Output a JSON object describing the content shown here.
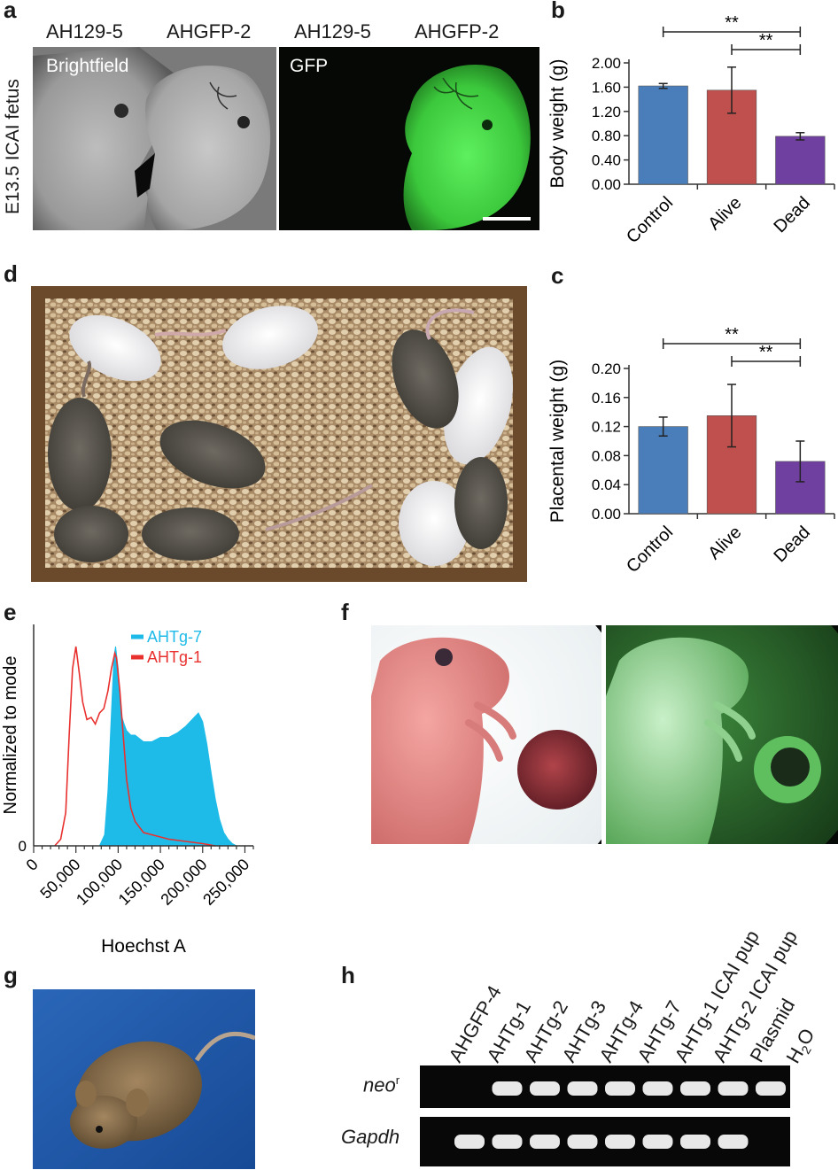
{
  "panels": {
    "a": {
      "label": "a",
      "side_label": "E13.5 ICAI fetus",
      "column_labels": [
        "AH129-5",
        "AHGFP-2",
        "AH129-5",
        "AHGFP-2"
      ],
      "image_labels": [
        "Brightfield",
        "GFP"
      ]
    },
    "b": {
      "label": "b"
    },
    "c": {
      "label": "c"
    },
    "d": {
      "label": "d"
    },
    "e": {
      "label": "e"
    },
    "f": {
      "label": "f"
    },
    "g": {
      "label": "g"
    },
    "h": {
      "label": "h",
      "lanes": [
        "AHGFP-4",
        "AHTg-1",
        "AHTg-2",
        "AHTg-3",
        "AHTg-4",
        "AHTg-7",
        "AHTg-1 ICAI pup",
        "AHTg-2 ICAI pup",
        "Plasmid",
        "H2O"
      ],
      "rows": [
        {
          "name": "neo",
          "superscript": "r",
          "bands": [
            false,
            true,
            true,
            true,
            true,
            true,
            true,
            true,
            true,
            false
          ]
        },
        {
          "name": "Gapdh",
          "superscript": "",
          "bands": [
            true,
            true,
            true,
            true,
            true,
            true,
            true,
            true,
            false,
            false
          ]
        }
      ]
    }
  },
  "colors": {
    "control": "#4a7ebb",
    "alive": "#c0504d",
    "dead": "#7040a0",
    "ahtg7": "#1ebbe8",
    "ahtg1": "#e8312f",
    "gfp": "#3fd13f"
  },
  "chart_data": [
    {
      "panel": "b",
      "type": "bar",
      "categories": [
        "Control",
        "Alive",
        "Dead"
      ],
      "values": [
        1.62,
        1.55,
        0.79
      ],
      "errors": [
        0.04,
        0.38,
        0.06
      ],
      "ylabel": "Body weight (g)",
      "ylim": [
        0,
        2.0
      ],
      "yticks": [
        "0.00",
        "0.40",
        "0.80",
        "1.20",
        "1.60",
        "2.00"
      ],
      "significance": [
        {
          "from": "Control",
          "to": "Dead",
          "label": "**"
        },
        {
          "from": "Alive",
          "to": "Dead",
          "label": "**"
        }
      ]
    },
    {
      "panel": "c",
      "type": "bar",
      "categories": [
        "Control",
        "Alive",
        "Dead"
      ],
      "values": [
        0.12,
        0.135,
        0.072
      ],
      "errors": [
        0.013,
        0.043,
        0.028
      ],
      "ylabel": "Placental weight (g)",
      "ylim": [
        0,
        0.2
      ],
      "yticks": [
        "0.00",
        "0.04",
        "0.08",
        "0.12",
        "0.16",
        "0.20"
      ],
      "significance": [
        {
          "from": "Control",
          "to": "Dead",
          "label": "**"
        },
        {
          "from": "Alive",
          "to": "Dead",
          "label": "**"
        }
      ]
    },
    {
      "panel": "e",
      "type": "area",
      "xlabel": "Hoechst A",
      "ylabel": "Normalized to mode",
      "xlim": [
        0,
        260000
      ],
      "ylim": [
        0,
        1.0
      ],
      "xticks": [
        "0",
        "50,000",
        "100,000",
        "150,000",
        "200,000",
        "250,000"
      ],
      "yticks": [
        "0"
      ],
      "series": [
        {
          "name": "AHTg-7",
          "x": [
            78000,
            84000,
            88000,
            92000,
            95000,
            97000,
            100000,
            103000,
            107000,
            110000,
            115000,
            120000,
            130000,
            140000,
            150000,
            160000,
            170000,
            180000,
            190000,
            195000,
            200000,
            205000,
            210000,
            215000,
            220000,
            225000,
            230000,
            235000,
            240000
          ],
          "y": [
            0.0,
            0.05,
            0.25,
            0.6,
            0.85,
            0.9,
            0.8,
            0.6,
            0.55,
            0.52,
            0.5,
            0.5,
            0.47,
            0.47,
            0.49,
            0.49,
            0.51,
            0.54,
            0.58,
            0.6,
            0.56,
            0.46,
            0.33,
            0.21,
            0.12,
            0.06,
            0.03,
            0.01,
            0.0
          ]
        },
        {
          "name": "AHTg-1",
          "x": [
            25000,
            32000,
            38000,
            42000,
            46000,
            50000,
            54000,
            58000,
            63000,
            68000,
            73000,
            78000,
            83000,
            88000,
            92000,
            96000,
            98000,
            102000,
            106000,
            110000,
            115000,
            120000,
            130000,
            140000,
            160000,
            180000,
            200000,
            215000
          ],
          "y": [
            0.0,
            0.03,
            0.15,
            0.5,
            0.8,
            0.9,
            0.78,
            0.65,
            0.57,
            0.58,
            0.55,
            0.6,
            0.62,
            0.7,
            0.8,
            0.87,
            0.85,
            0.7,
            0.5,
            0.3,
            0.17,
            0.11,
            0.06,
            0.05,
            0.03,
            0.02,
            0.01,
            0.0
          ]
        }
      ]
    }
  ]
}
